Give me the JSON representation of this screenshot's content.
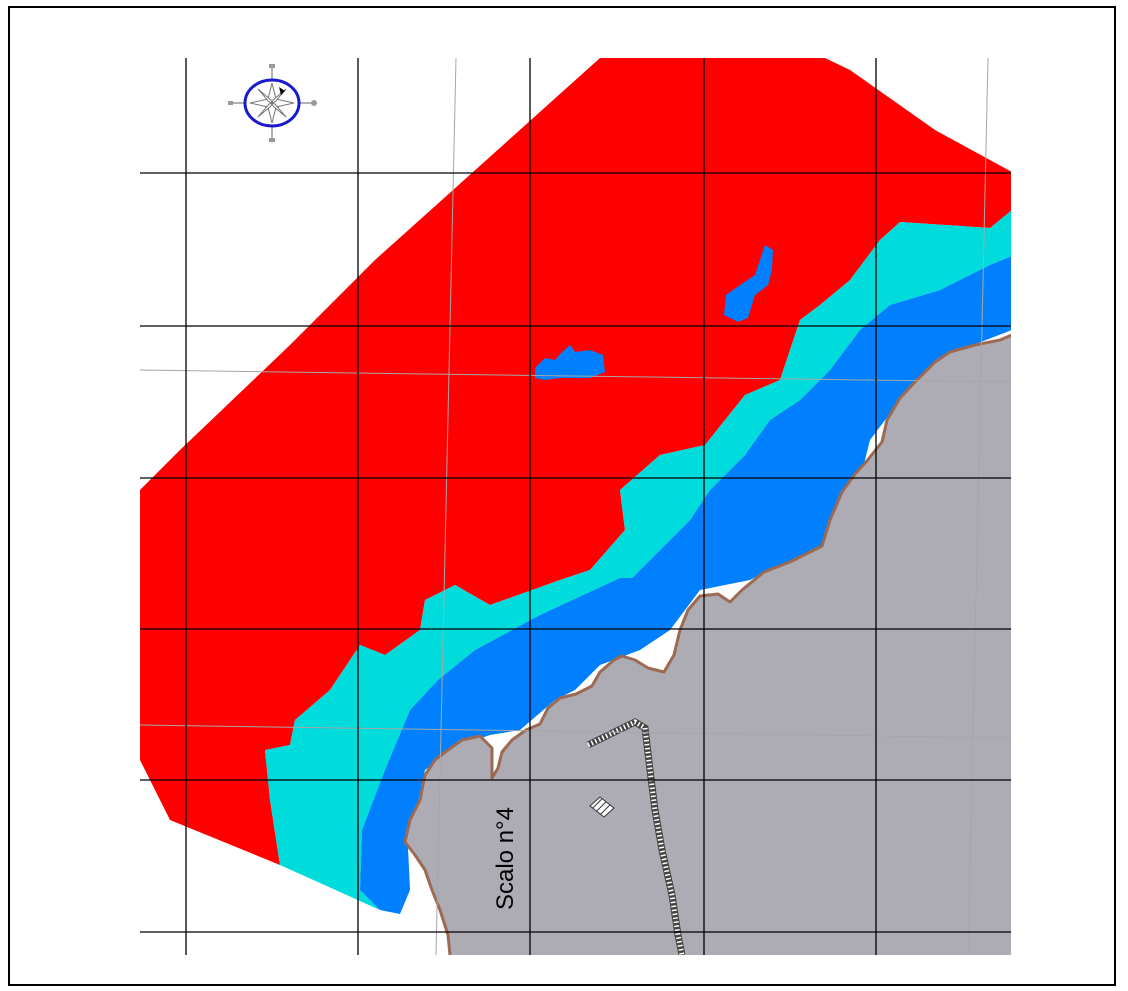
{
  "map": {
    "label": "Scalo n°4",
    "colors": {
      "zone_red": "#ff0000",
      "zone_cyan": "#00dcdc",
      "zone_blue": "#0080ff",
      "land": "#adacb5",
      "coastline": "#9c6a52",
      "grid": "#000000",
      "graticule": "#a6a6a6",
      "compass_ring": "#1a1acc"
    },
    "icons": {
      "compass": "compass-rose-icon",
      "structure": "hatched-structure-icon"
    }
  }
}
